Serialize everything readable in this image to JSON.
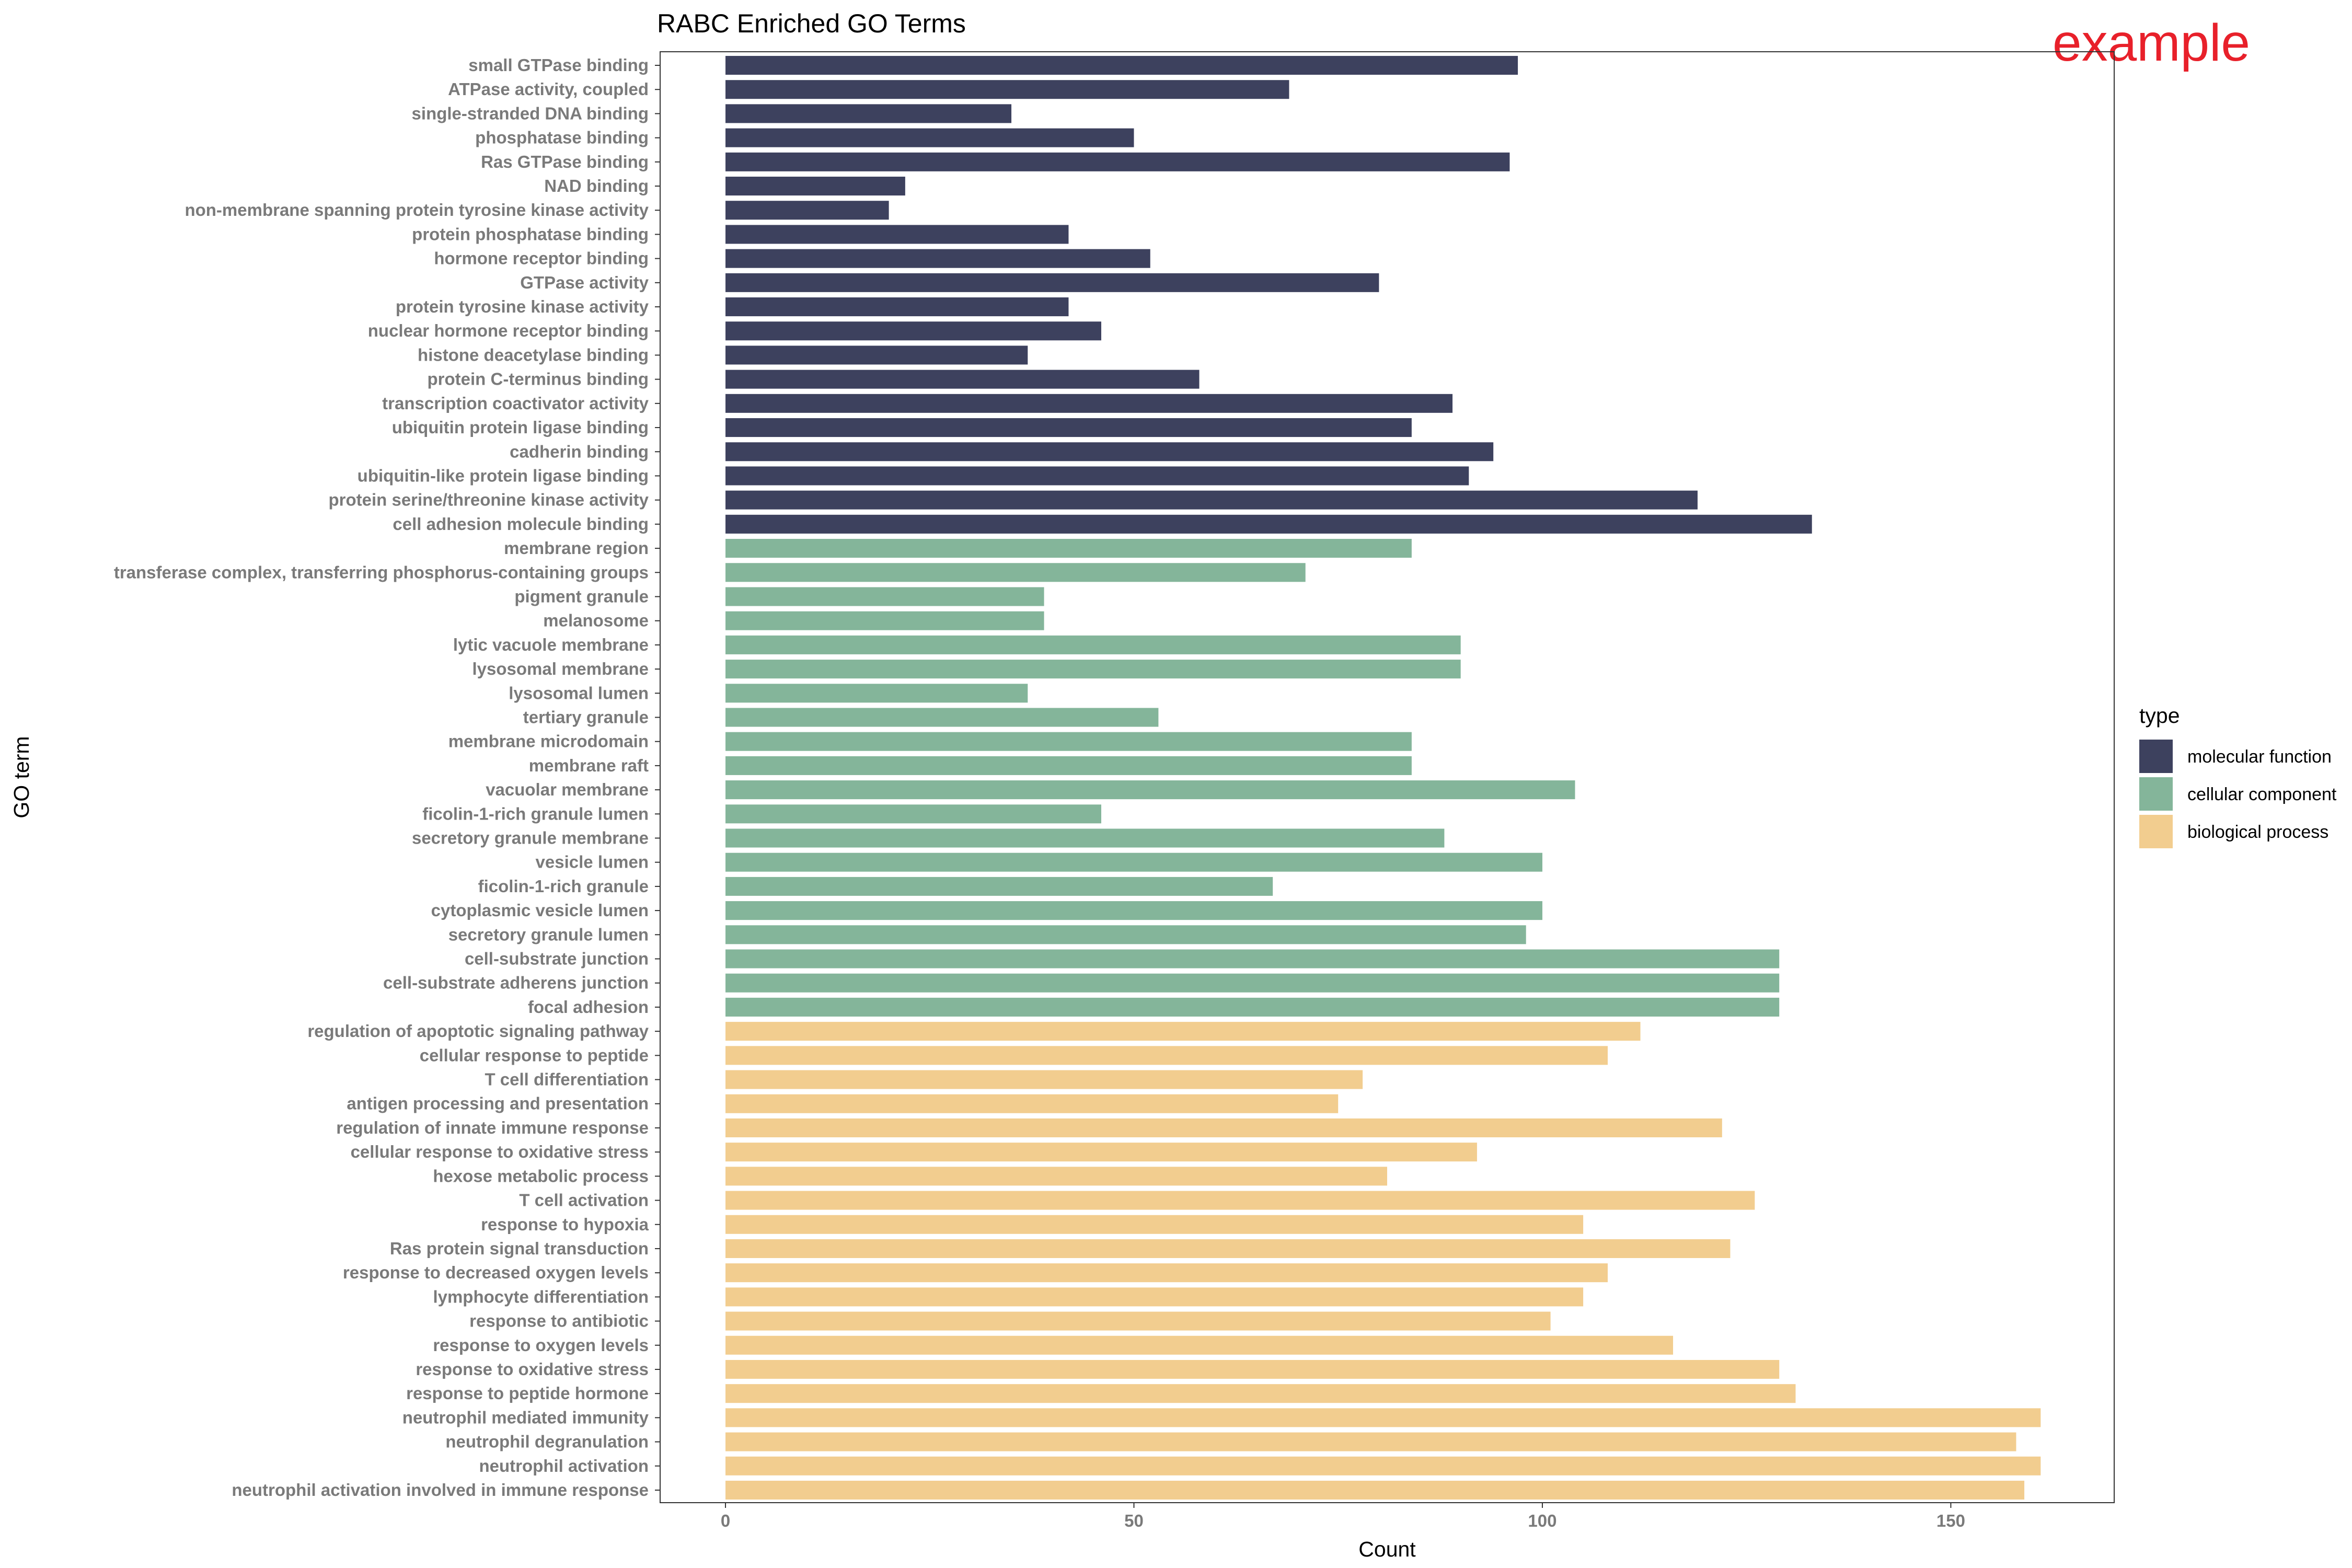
{
  "chart_data": {
    "type": "bar",
    "orientation": "horizontal",
    "title": "RABC Enriched GO Terms",
    "xlabel": "Count",
    "ylabel": "GO term",
    "xlim": [
      -8,
      170
    ],
    "x_ticks": [
      0,
      50,
      100,
      150
    ],
    "grid": false,
    "legend_title": "type",
    "legend_position": "right",
    "watermark": "example",
    "watermark_color": "#e8202a",
    "types": [
      {
        "name": "molecular function",
        "color": "#3d415e"
      },
      {
        "name": "cellular component",
        "color": "#84b59a"
      },
      {
        "name": "biological process",
        "color": "#f2cd8f"
      }
    ],
    "bars": [
      {
        "term": "small GTPase binding",
        "count": 97,
        "type": "molecular function"
      },
      {
        "term": "ATPase activity, coupled",
        "count": 69,
        "type": "molecular function"
      },
      {
        "term": "single-stranded DNA binding",
        "count": 35,
        "type": "molecular function"
      },
      {
        "term": "phosphatase binding",
        "count": 50,
        "type": "molecular function"
      },
      {
        "term": "Ras GTPase binding",
        "count": 96,
        "type": "molecular function"
      },
      {
        "term": "NAD binding",
        "count": 22,
        "type": "molecular function"
      },
      {
        "term": "non-membrane spanning protein tyrosine kinase activity",
        "count": 20,
        "type": "molecular function"
      },
      {
        "term": "protein phosphatase binding",
        "count": 42,
        "type": "molecular function"
      },
      {
        "term": "hormone receptor binding",
        "count": 52,
        "type": "molecular function"
      },
      {
        "term": "GTPase activity",
        "count": 80,
        "type": "molecular function"
      },
      {
        "term": "protein tyrosine kinase activity",
        "count": 42,
        "type": "molecular function"
      },
      {
        "term": "nuclear hormone receptor binding",
        "count": 46,
        "type": "molecular function"
      },
      {
        "term": "histone deacetylase binding",
        "count": 37,
        "type": "molecular function"
      },
      {
        "term": "protein C-terminus binding",
        "count": 58,
        "type": "molecular function"
      },
      {
        "term": "transcription coactivator activity",
        "count": 89,
        "type": "molecular function"
      },
      {
        "term": "ubiquitin protein ligase binding",
        "count": 84,
        "type": "molecular function"
      },
      {
        "term": "cadherin binding",
        "count": 94,
        "type": "molecular function"
      },
      {
        "term": "ubiquitin-like protein ligase binding",
        "count": 91,
        "type": "molecular function"
      },
      {
        "term": "protein serine/threonine kinase activity",
        "count": 119,
        "type": "molecular function"
      },
      {
        "term": "cell adhesion molecule binding",
        "count": 133,
        "type": "molecular function"
      },
      {
        "term": "membrane region",
        "count": 84,
        "type": "cellular component"
      },
      {
        "term": "transferase complex, transferring phosphorus-containing groups",
        "count": 71,
        "type": "cellular component"
      },
      {
        "term": "pigment granule",
        "count": 39,
        "type": "cellular component"
      },
      {
        "term": "melanosome",
        "count": 39,
        "type": "cellular component"
      },
      {
        "term": "lytic vacuole membrane",
        "count": 90,
        "type": "cellular component"
      },
      {
        "term": "lysosomal membrane",
        "count": 90,
        "type": "cellular component"
      },
      {
        "term": "lysosomal lumen",
        "count": 37,
        "type": "cellular component"
      },
      {
        "term": "tertiary granule",
        "count": 53,
        "type": "cellular component"
      },
      {
        "term": "membrane microdomain",
        "count": 84,
        "type": "cellular component"
      },
      {
        "term": "membrane raft",
        "count": 84,
        "type": "cellular component"
      },
      {
        "term": "vacuolar membrane",
        "count": 104,
        "type": "cellular component"
      },
      {
        "term": "ficolin-1-rich granule lumen",
        "count": 46,
        "type": "cellular component"
      },
      {
        "term": "secretory granule membrane",
        "count": 88,
        "type": "cellular component"
      },
      {
        "term": "vesicle lumen",
        "count": 100,
        "type": "cellular component"
      },
      {
        "term": "ficolin-1-rich granule",
        "count": 67,
        "type": "cellular component"
      },
      {
        "term": "cytoplasmic vesicle lumen",
        "count": 100,
        "type": "cellular component"
      },
      {
        "term": "secretory granule lumen",
        "count": 98,
        "type": "cellular component"
      },
      {
        "term": "cell-substrate junction",
        "count": 129,
        "type": "cellular component"
      },
      {
        "term": "cell-substrate adherens junction",
        "count": 129,
        "type": "cellular component"
      },
      {
        "term": "focal adhesion",
        "count": 129,
        "type": "cellular component"
      },
      {
        "term": "regulation of apoptotic signaling pathway",
        "count": 112,
        "type": "biological process"
      },
      {
        "term": "cellular response to peptide",
        "count": 108,
        "type": "biological process"
      },
      {
        "term": "T cell differentiation",
        "count": 78,
        "type": "biological process"
      },
      {
        "term": "antigen processing and presentation",
        "count": 75,
        "type": "biological process"
      },
      {
        "term": "regulation of innate immune response",
        "count": 122,
        "type": "biological process"
      },
      {
        "term": "cellular response to oxidative stress",
        "count": 92,
        "type": "biological process"
      },
      {
        "term": "hexose metabolic process",
        "count": 81,
        "type": "biological process"
      },
      {
        "term": "T cell activation",
        "count": 126,
        "type": "biological process"
      },
      {
        "term": "response to hypoxia",
        "count": 105,
        "type": "biological process"
      },
      {
        "term": "Ras protein signal transduction",
        "count": 123,
        "type": "biological process"
      },
      {
        "term": "response to decreased oxygen levels",
        "count": 108,
        "type": "biological process"
      },
      {
        "term": "lymphocyte differentiation",
        "count": 105,
        "type": "biological process"
      },
      {
        "term": "response to antibiotic",
        "count": 101,
        "type": "biological process"
      },
      {
        "term": "response to oxygen levels",
        "count": 116,
        "type": "biological process"
      },
      {
        "term": "response to oxidative stress",
        "count": 129,
        "type": "biological process"
      },
      {
        "term": "response to peptide hormone",
        "count": 131,
        "type": "biological process"
      },
      {
        "term": "neutrophil mediated immunity",
        "count": 161,
        "type": "biological process"
      },
      {
        "term": "neutrophil degranulation",
        "count": 158,
        "type": "biological process"
      },
      {
        "term": "neutrophil activation",
        "count": 161,
        "type": "biological process"
      },
      {
        "term": "neutrophil activation involved in immune response",
        "count": 159,
        "type": "biological process"
      }
    ]
  }
}
